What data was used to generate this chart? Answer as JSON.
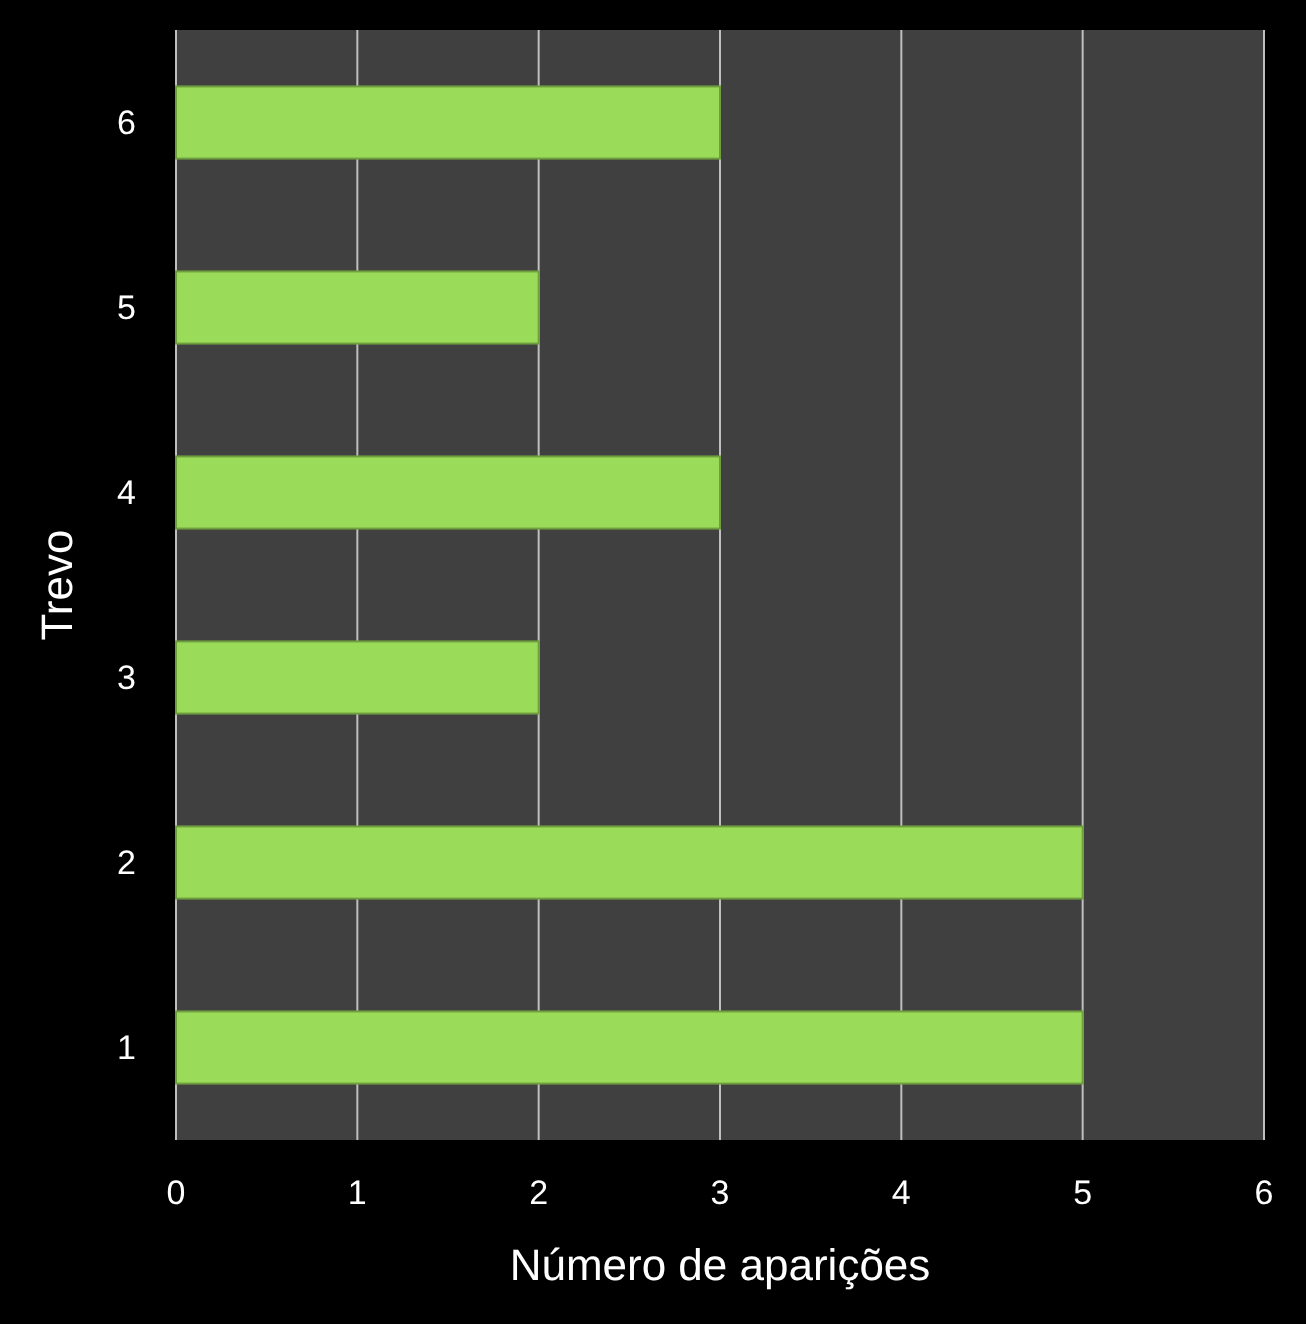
{
  "chart_data": {
    "type": "bar",
    "orientation": "horizontal",
    "xlabel": "Número de aparições",
    "ylabel": "Trevo",
    "categories": [
      "6",
      "5",
      "4",
      "3",
      "2",
      "1"
    ],
    "values": [
      3,
      2,
      3,
      2,
      5,
      5
    ],
    "color": "#9bdb5a",
    "xlim": [
      0,
      6
    ],
    "xticks": [
      0,
      1,
      2,
      3,
      4,
      5,
      6
    ],
    "grid": "x"
  }
}
